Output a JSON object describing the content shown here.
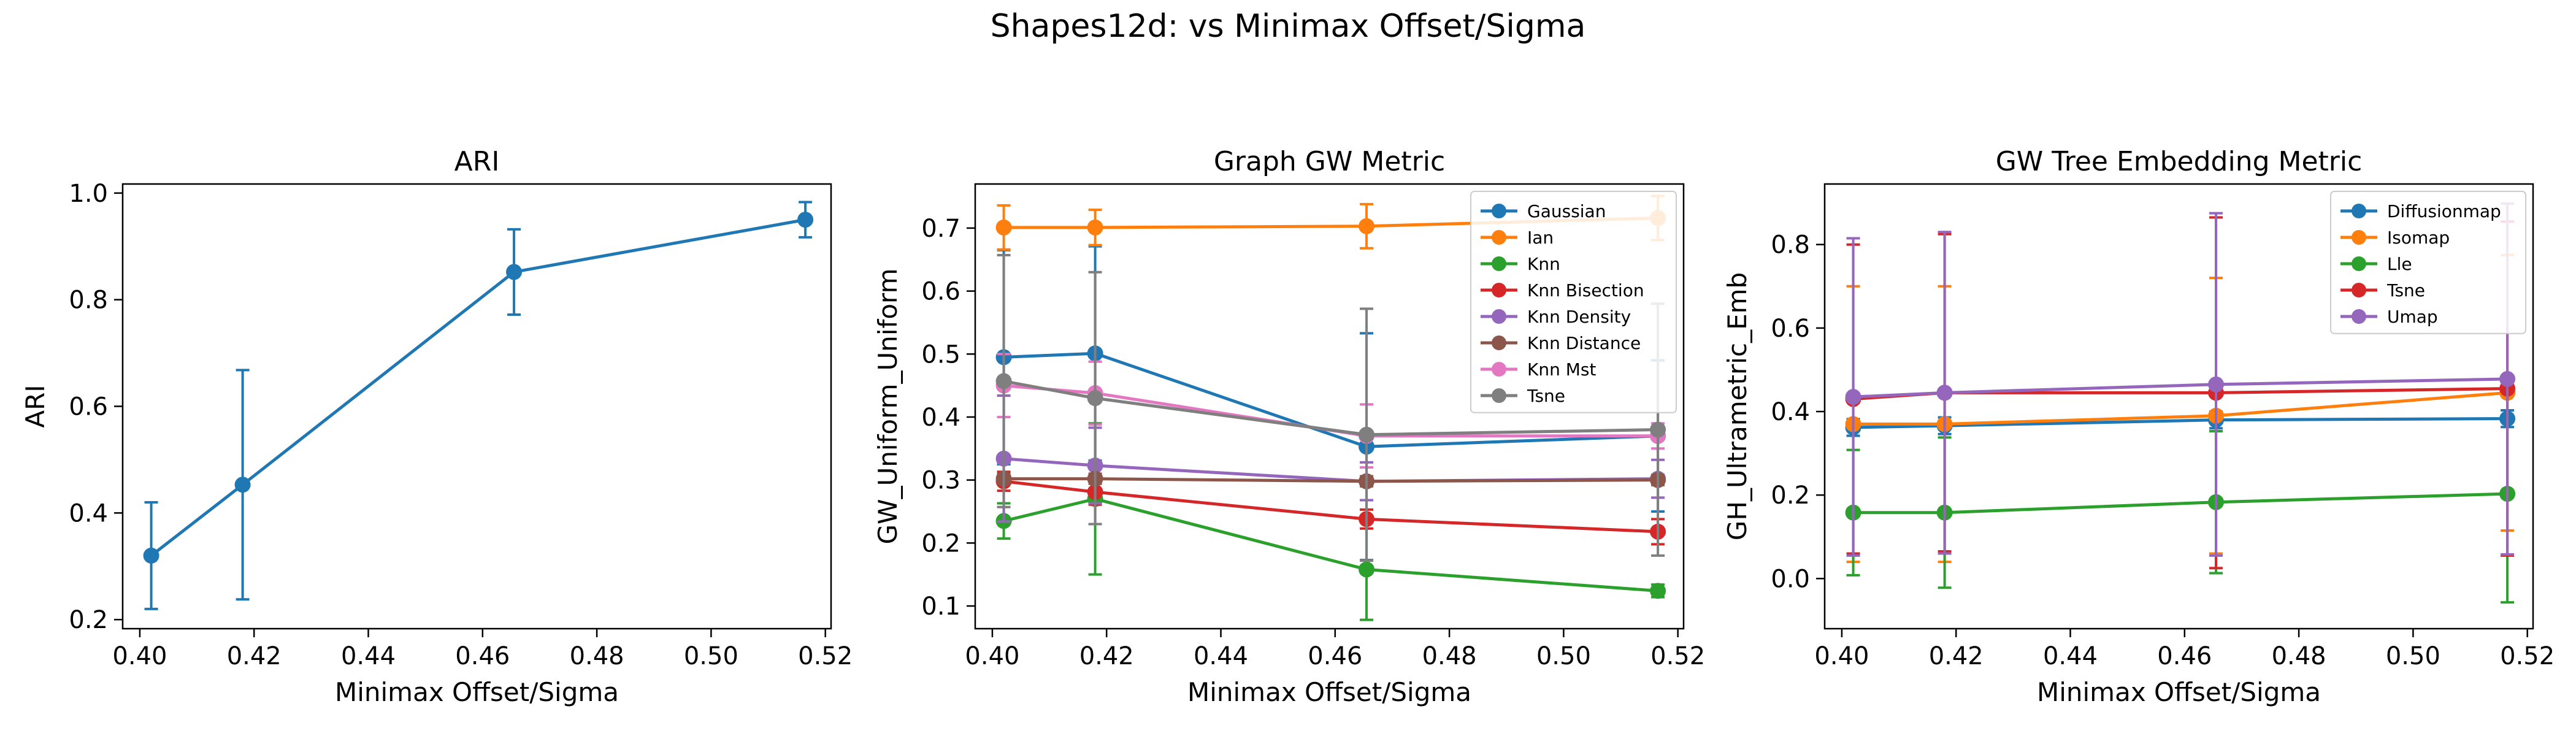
{
  "suptitle": "Shapes12d: vs Minimax Offset/Sigma",
  "colors": {
    "blue": "#1f77b4",
    "orange": "#ff7f0e",
    "green": "#2ca02c",
    "red": "#d62728",
    "purple": "#9467bd",
    "brown": "#8c564b",
    "pink": "#e377c2",
    "gray": "#7f7f7f"
  },
  "chart_data": [
    {
      "type": "line",
      "title": "ARI",
      "xlabel": "Minimax Offset/Sigma",
      "ylabel": "ARI",
      "xlim": [
        0.397,
        0.521
      ],
      "ylim": [
        0.183,
        1.017
      ],
      "xticks": [
        0.4,
        0.42,
        0.44,
        0.46,
        0.48,
        0.5,
        0.52
      ],
      "xtick_labels": [
        "0.40",
        "0.42",
        "0.44",
        "0.46",
        "0.48",
        "0.50",
        "0.52"
      ],
      "yticks": [
        0.2,
        0.4,
        0.6,
        0.8,
        1.0
      ],
      "ytick_labels": [
        "0.2",
        "0.4",
        "0.6",
        "0.8",
        "1.0"
      ],
      "legend": null,
      "x": [
        0.402,
        0.418,
        0.4655,
        0.5165
      ],
      "series": [
        {
          "color": "#1f77b4",
          "values": [
            0.32,
            0.453,
            0.852,
            0.95
          ],
          "err": [
            0.1,
            0.215,
            0.08,
            0.033
          ]
        }
      ]
    },
    {
      "type": "line",
      "title": "Graph GW Metric",
      "xlabel": "Minimax Offset/Sigma",
      "ylabel": "GW_Uniform_Uniform",
      "xlim": [
        0.397,
        0.521
      ],
      "ylim": [
        0.064,
        0.77
      ],
      "xticks": [
        0.4,
        0.42,
        0.44,
        0.46,
        0.48,
        0.5,
        0.52
      ],
      "xtick_labels": [
        "0.40",
        "0.42",
        "0.44",
        "0.46",
        "0.48",
        "0.50",
        "0.52"
      ],
      "yticks": [
        0.1,
        0.2,
        0.3,
        0.4,
        0.5,
        0.6,
        0.7
      ],
      "ytick_labels": [
        "0.1",
        "0.2",
        "0.3",
        "0.4",
        "0.5",
        "0.6",
        "0.7"
      ],
      "legend": "top-right",
      "x": [
        0.402,
        0.418,
        0.4655,
        0.5165
      ],
      "series": [
        {
          "name": "Gaussian",
          "color": "#1f77b4",
          "values": [
            0.495,
            0.501,
            0.353,
            0.37
          ],
          "err": [
            0.17,
            0.17,
            0.18,
            0.12
          ]
        },
        {
          "name": "Ian",
          "color": "#ff7f0e",
          "values": [
            0.701,
            0.701,
            0.703,
            0.716
          ],
          "err": [
            0.035,
            0.028,
            0.035,
            0.035
          ]
        },
        {
          "name": "Knn",
          "color": "#2ca02c",
          "values": [
            0.235,
            0.27,
            0.158,
            0.124
          ],
          "err": [
            0.028,
            0.12,
            0.08,
            0.01
          ]
        },
        {
          "name": "Knn Bisection",
          "color": "#d62728",
          "values": [
            0.298,
            0.281,
            0.238,
            0.218
          ],
          "err": [
            0.015,
            0.02,
            0.015,
            0.02
          ]
        },
        {
          "name": "Knn Density",
          "color": "#9467bd",
          "values": [
            0.334,
            0.323,
            0.298,
            0.302
          ],
          "err": [
            0.1,
            0.06,
            0.03,
            0.03
          ]
        },
        {
          "name": "Knn Distance",
          "color": "#8c564b",
          "values": [
            0.302,
            0.302,
            0.298,
            0.3
          ],
          "err": [
            0.008,
            0.008,
            0.008,
            0.008
          ]
        },
        {
          "name": "Knn Mst",
          "color": "#e377c2",
          "values": [
            0.45,
            0.438,
            0.37,
            0.37
          ],
          "err": [
            0.05,
            0.05,
            0.05,
            0.02
          ]
        },
        {
          "name": "Tsne",
          "color": "#7f7f7f",
          "values": [
            0.457,
            0.43,
            0.372,
            0.38
          ],
          "err": [
            0.2,
            0.2,
            0.2,
            0.2
          ]
        }
      ]
    },
    {
      "type": "line",
      "title": "GW Tree Embedding Metric",
      "xlabel": "Minimax Offset/Sigma",
      "ylabel": "GH_Ultrametric_Emb",
      "xlim": [
        0.397,
        0.521
      ],
      "ylim": [
        -0.12,
        0.945
      ],
      "xticks": [
        0.4,
        0.42,
        0.44,
        0.46,
        0.48,
        0.5,
        0.52
      ],
      "xtick_labels": [
        "0.40",
        "0.42",
        "0.44",
        "0.46",
        "0.48",
        "0.50",
        "0.52"
      ],
      "yticks": [
        0.0,
        0.2,
        0.4,
        0.6,
        0.8
      ],
      "ytick_labels": [
        "0.0",
        "0.2",
        "0.4",
        "0.6",
        "0.8"
      ],
      "legend": "top-right",
      "x": [
        0.402,
        0.418,
        0.4655,
        0.5165
      ],
      "series": [
        {
          "name": "Diffusionmap",
          "color": "#1f77b4",
          "values": [
            0.362,
            0.366,
            0.38,
            0.383
          ],
          "err": [
            0.02,
            0.02,
            0.02,
            0.02
          ]
        },
        {
          "name": "Isomap",
          "color": "#ff7f0e",
          "values": [
            0.37,
            0.37,
            0.39,
            0.445
          ],
          "err": [
            0.33,
            0.33,
            0.33,
            0.33
          ]
        },
        {
          "name": "Lle",
          "color": "#2ca02c",
          "values": [
            0.158,
            0.158,
            0.183,
            0.203
          ],
          "err": [
            0.15,
            0.18,
            0.17,
            0.26
          ]
        },
        {
          "name": "Tsne",
          "color": "#d62728",
          "values": [
            0.43,
            0.445,
            0.445,
            0.455
          ],
          "err": [
            0.37,
            0.38,
            0.42,
            0.4
          ]
        },
        {
          "name": "Umap",
          "color": "#9467bd",
          "values": [
            0.435,
            0.445,
            0.465,
            0.478
          ],
          "err": [
            0.38,
            0.385,
            0.41,
            0.42
          ]
        }
      ]
    }
  ]
}
